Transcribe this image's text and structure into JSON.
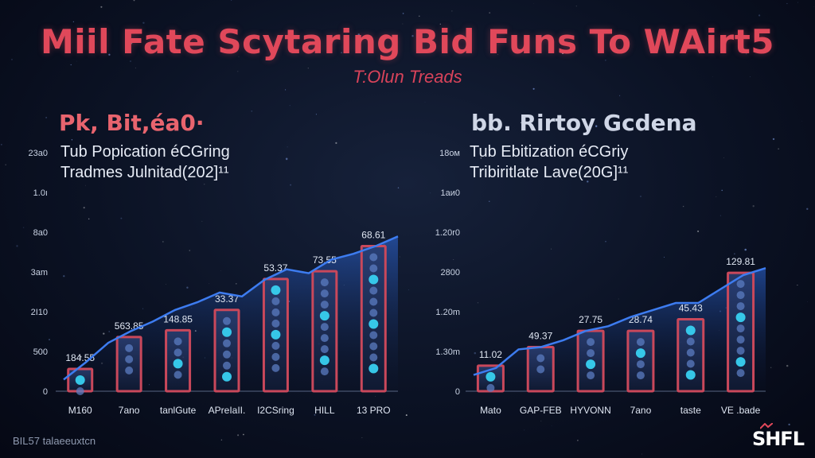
{
  "title": "Miil Fate Scytaring Bid Funs To WAirt5",
  "subtitle": "T:Olun Treads",
  "footer_text": "BIL57 talaeeuxtcn",
  "logo_text": "SHFL",
  "colors": {
    "title": "#e0485a",
    "bar_outline": "#c9485b",
    "line": "#3d7cf0",
    "dot": "#38d0f0",
    "panel_left_title": "#e8646e",
    "panel_right_title": "#cfd6e6"
  },
  "chart_data": [
    {
      "type": "bar",
      "title": "Pk, Bit,éa0·",
      "subtitle_lines": [
        "Tub Popication éCGring",
        "Tradmes Julnitad(202]¹¹"
      ],
      "y_ticks": [
        "0",
        "500",
        "2I10",
        "3am",
        "8a0",
        "1.0ı",
        "23a0"
      ],
      "ylim": [
        0,
        2400
      ],
      "categories": [
        "M160",
        "7ano",
        "tanlGute",
        "APreIaII.",
        "I2CSring",
        "HILL",
        "13 PRO"
      ],
      "value_labels": [
        "184.55",
        "563.85",
        "148.85",
        "33.37",
        "53.37",
        "73.55",
        "68.61"
      ],
      "values": [
        230,
        560,
        630,
        840,
        1160,
        1240,
        1500
      ],
      "line": [
        120,
        300,
        500,
        620,
        720,
        840,
        920,
        1020,
        980,
        1150,
        1260,
        1220,
        1360,
        1420,
        1500,
        1600
      ],
      "grid": false
    },
    {
      "type": "bar",
      "title": "bb. Rirtoy Gcdena",
      "subtitle_lines": [
        "Tub Ebitization éCGriy",
        "Tribiritlate Lave(20G]¹¹"
      ],
      "y_ticks": [
        "0",
        "1.30m",
        "1.20m",
        "2800",
        "1.20r0",
        "1аи0",
        "18ом"
      ],
      "ylim": [
        0,
        2000
      ],
      "categories": [
        "Mato",
        "GAP-FEB",
        "HYVONN",
        "7ano",
        "taste",
        "VE .bade"
      ],
      "value_labels": [
        "11.02",
        "49.37",
        "27.75",
        "28.74",
        "45.43",
        "129.81"
      ],
      "values": [
        220,
        380,
        520,
        520,
        620,
        1020
      ],
      "line": [
        140,
        200,
        360,
        380,
        440,
        520,
        560,
        640,
        700,
        760,
        760,
        880,
        1000,
        1060
      ],
      "grid": false
    }
  ]
}
